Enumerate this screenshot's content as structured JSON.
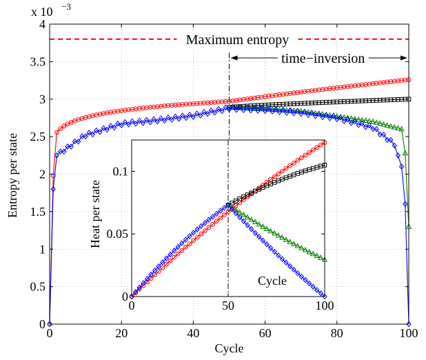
{
  "chart_data": [
    {
      "id": "main",
      "type": "line",
      "xlabel": "Cycle",
      "ylabel": "Entropy per state",
      "y_multiplier_label": "x 10",
      "y_multiplier_exponent": "−3",
      "xlim": [
        0,
        100
      ],
      "ylim": [
        0,
        4
      ],
      "x_ticks": [
        0,
        20,
        40,
        60,
        80,
        100
      ],
      "x_tick_labels": [
        "0",
        "20",
        "40",
        "60",
        "80",
        "100"
      ],
      "y_ticks": [
        0,
        0.5,
        1,
        1.5,
        2,
        2.5,
        3,
        3.5,
        4
      ],
      "y_tick_labels": [
        "0",
        "0.5",
        "1",
        "1.5",
        "2",
        "2.5",
        "3",
        "3.5",
        "4"
      ],
      "grid": true,
      "reference_line": {
        "label": "Maximum entropy",
        "y": 3.8,
        "color": "#ff0000",
        "style": "dashed"
      },
      "annotation": {
        "label": "time−inversion",
        "x_start": 50,
        "x_end": 100,
        "y": 3.55,
        "vline_x": 50
      },
      "series": [
        {
          "key": "red",
          "color": "#ff0000",
          "marker": "circle",
          "x_start": 0,
          "x_end": 100,
          "y0": 0,
          "y1": 1.98,
          "curve_k": 0.0465,
          "curve_b": 2.97,
          "end_value": 3.26
        },
        {
          "key": "black",
          "color": "#000000",
          "marker": "square",
          "x_start": 50,
          "x_end": 100,
          "start_value": 2.89,
          "end_value": 3.0
        },
        {
          "key": "green",
          "color": "#008000",
          "marker": "triangle",
          "x_start": 50,
          "x_end": 100,
          "start_value": 2.89,
          "v98": 2.6,
          "v99": 2.28,
          "end_value": 1.3
        },
        {
          "key": "blue",
          "color": "#0000ff",
          "marker": "diamond",
          "x_start": 0,
          "x_end": 100,
          "peak_x": 50,
          "peak_value": 2.88,
          "y0": 0,
          "y1": 1.8,
          "v2": 2.25,
          "v10": 2.52,
          "v20": 2.67,
          "v30": 2.72,
          "v40": 2.78,
          "v60": 2.86,
          "v70": 2.82,
          "v80": 2.75,
          "v90": 2.62,
          "v96": 2.4,
          "v98": 2.1,
          "v99": 1.6,
          "end_value": 0
        }
      ]
    },
    {
      "id": "inset",
      "type": "line",
      "xlabel": "Cycle",
      "ylabel": "Heat per state",
      "xlim": [
        0,
        100
      ],
      "ylim": [
        0,
        0.125
      ],
      "x_ticks": [
        0,
        50,
        100
      ],
      "x_tick_labels": [
        "0",
        "50",
        "100"
      ],
      "y_ticks": [
        0,
        0.05,
        0.1
      ],
      "y_tick_labels": [
        "0",
        "0.05",
        "0.1"
      ],
      "grid": false,
      "series": [
        {
          "key": "red",
          "color": "#ff0000",
          "marker": "circle",
          "x_start": 0,
          "x_end": 100,
          "start_value": 0,
          "end_value": 0.123,
          "curvature": 0.2
        },
        {
          "key": "blue-rise",
          "color": "#0000ff",
          "marker": "diamond",
          "x_start": 0,
          "x_end": 50,
          "start_value": 0,
          "end_value": 0.073,
          "curvature": 0.25
        },
        {
          "key": "black",
          "color": "#000000",
          "marker": "square",
          "x_start": 50,
          "x_end": 100,
          "start_value": 0.073,
          "end_value": 0.105,
          "curvature": 0.35
        },
        {
          "key": "green",
          "color": "#008000",
          "marker": "triangle",
          "x_start": 50,
          "x_end": 100,
          "start_value": 0.073,
          "end_value": 0.0295,
          "curvature": 0.15
        },
        {
          "key": "blue-fall",
          "color": "#0000ff",
          "marker": "diamond",
          "x_start": 50,
          "x_end": 100,
          "start_value": 0.073,
          "end_value": 0.0,
          "curvature": 0.12
        }
      ]
    }
  ]
}
